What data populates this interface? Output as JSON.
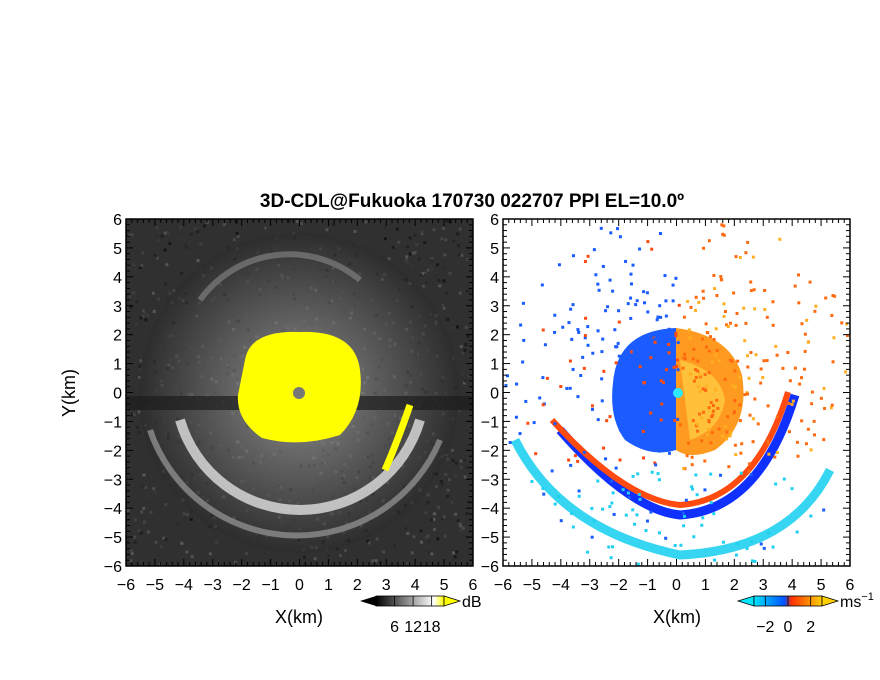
{
  "chart_data": [
    {
      "type": "heatmap",
      "title": "3D-CDL@Fukuoka 170730 022707 PPI EL=10.0º",
      "xlabel": "X(km)",
      "ylabel": "Y(km)",
      "xlim": [
        -6,
        6
      ],
      "ylim": [
        -6,
        6
      ],
      "x_ticks": [
        -6,
        -5,
        -4,
        -3,
        -2,
        -1,
        0,
        1,
        2,
        3,
        4,
        5,
        6
      ],
      "y_ticks": [
        -6,
        -5,
        -4,
        -3,
        -2,
        -1,
        0,
        1,
        2,
        3,
        4,
        5,
        6
      ],
      "x_tick_labels": [
        "−6",
        "−5",
        "−4",
        "−3",
        "−2",
        "−1",
        "0",
        "1",
        "2",
        "3",
        "4",
        "5",
        "6"
      ],
      "y_tick_labels": [
        "−6",
        "−5",
        "−4",
        "−3",
        "−2",
        "−1",
        "0",
        "1",
        "2",
        "3",
        "4",
        "5",
        "6"
      ],
      "colorbar": {
        "unit": "dB",
        "ticks": [
          6,
          12,
          18
        ],
        "tick_labels": [
          "6",
          "12",
          "18"
        ],
        "colors": [
          "#000000",
          "#ffffff",
          "#ffff00"
        ]
      },
      "features": {
        "saturated_core_radius_km": 2.0,
        "radar_site_km": [
          0,
          0
        ],
        "ring_radius_km": 3.8
      }
    },
    {
      "type": "heatmap",
      "xlabel": "X(km)",
      "ylabel": "",
      "xlim": [
        -6,
        6
      ],
      "ylim": [
        -6,
        6
      ],
      "x_ticks": [
        -6,
        -5,
        -4,
        -3,
        -2,
        -1,
        0,
        1,
        2,
        3,
        4,
        5,
        6
      ],
      "y_ticks": [
        -6,
        -5,
        -4,
        -3,
        -2,
        -1,
        0,
        1,
        2,
        3,
        4,
        5,
        6
      ],
      "x_tick_labels": [
        "−6",
        "−5",
        "−4",
        "−3",
        "−2",
        "−1",
        "0",
        "1",
        "2",
        "3",
        "4",
        "5",
        "6"
      ],
      "y_tick_labels": [
        "−6",
        "−5",
        "−4",
        "−3",
        "−2",
        "−1",
        "0",
        "1",
        "2",
        "3",
        "4",
        "5",
        "6"
      ],
      "colorbar": {
        "unit": "ms",
        "unit_exponent": "−1",
        "ticks": [
          -2,
          0,
          2
        ],
        "tick_labels": [
          "−2",
          "0",
          "2"
        ],
        "colors": [
          "#00e6ff",
          "#0050ff",
          "#ff3000",
          "#ffd000"
        ]
      },
      "features": {
        "core_radius_km": 2.0,
        "negative_side": "west",
        "positive_side": "east"
      }
    }
  ]
}
